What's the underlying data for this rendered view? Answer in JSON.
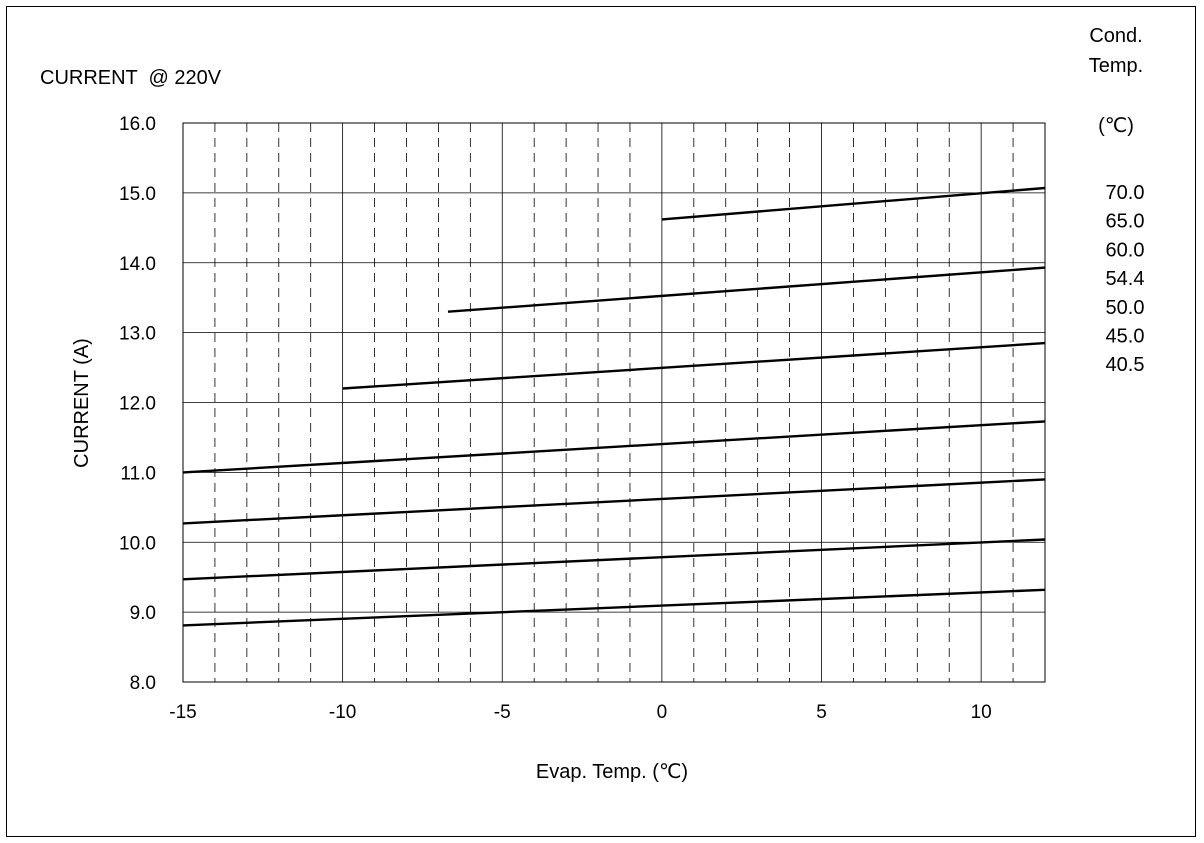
{
  "chart_data": {
    "type": "line",
    "title": "CURRENT  @ 220V",
    "xlabel": "Evap. Temp. (℃)",
    "ylabel": "CURRENT (A)",
    "xlim": [
      -15,
      12
    ],
    "ylim": [
      8.0,
      16.0
    ],
    "xticks": [
      -15,
      -10,
      -5,
      0,
      5,
      10
    ],
    "xtick_labels": [
      "-15",
      "-10",
      "-5",
      "0",
      "5",
      "10"
    ],
    "yticks": [
      8,
      9,
      10,
      11,
      12,
      13,
      14,
      15,
      16
    ],
    "ytick_labels": [
      "8.0",
      "9.0",
      "10.0",
      "11.0",
      "12.0",
      "13.0",
      "14.0",
      "15.0",
      "16.0"
    ],
    "grid": true,
    "legend": {
      "title_lines": [
        "Cond.",
        "Temp.",
        "(℃)"
      ],
      "placement": "right",
      "entries": [
        "70.0",
        "65.0",
        "60.0",
        "54.4",
        "50.0",
        "45.0",
        "40.5"
      ]
    },
    "series": [
      {
        "name": "70.0",
        "x": [
          0,
          12
        ],
        "y": [
          14.62,
          15.07
        ]
      },
      {
        "name": "65.0",
        "x": [
          -6.7,
          12
        ],
        "y": [
          13.3,
          13.93
        ]
      },
      {
        "name": "60.0",
        "x": [
          -10,
          12
        ],
        "y": [
          12.2,
          12.85
        ]
      },
      {
        "name": "54.4",
        "x": [
          -15,
          12
        ],
        "y": [
          11.0,
          11.73
        ]
      },
      {
        "name": "50.0",
        "x": [
          -15,
          12
        ],
        "y": [
          10.27,
          10.9
        ]
      },
      {
        "name": "45.0",
        "x": [
          -15,
          12
        ],
        "y": [
          9.47,
          10.04
        ]
      },
      {
        "name": "40.5",
        "x": [
          -15,
          12
        ],
        "y": [
          8.81,
          9.32
        ]
      }
    ]
  }
}
